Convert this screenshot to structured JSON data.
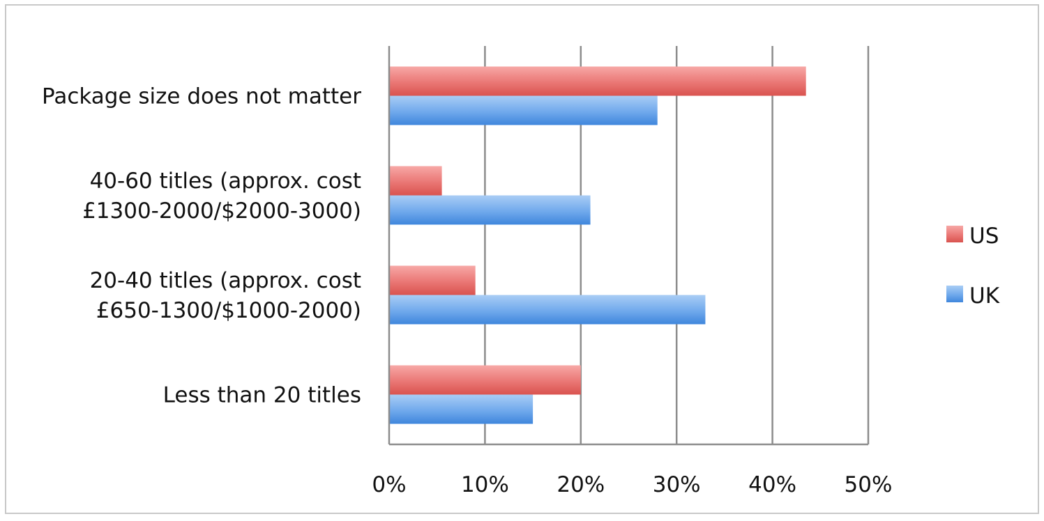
{
  "chart_data": {
    "type": "bar",
    "orientation": "horizontal",
    "title": "",
    "xlabel": "",
    "ylabel": "",
    "categories": [
      [
        "Package size does not matter"
      ],
      [
        "40-60 titles (approx. cost",
        "£1300-2000/$2000-3000)"
      ],
      [
        "20-40 titles (approx. cost",
        "£650-1300/$1000-2000)"
      ],
      [
        "Less than 20 titles"
      ]
    ],
    "series": [
      {
        "name": "US",
        "color": "#e46c6c",
        "values": [
          43.5,
          5.5,
          9,
          20
        ]
      },
      {
        "name": "UK",
        "color": "#5b9be6",
        "values": [
          28,
          21,
          33,
          15
        ]
      }
    ],
    "xlim": [
      0,
      50
    ],
    "xticks": [
      "0%",
      "10%",
      "20%",
      "30%",
      "40%",
      "50%"
    ],
    "grid": true,
    "legend_position": "right"
  }
}
